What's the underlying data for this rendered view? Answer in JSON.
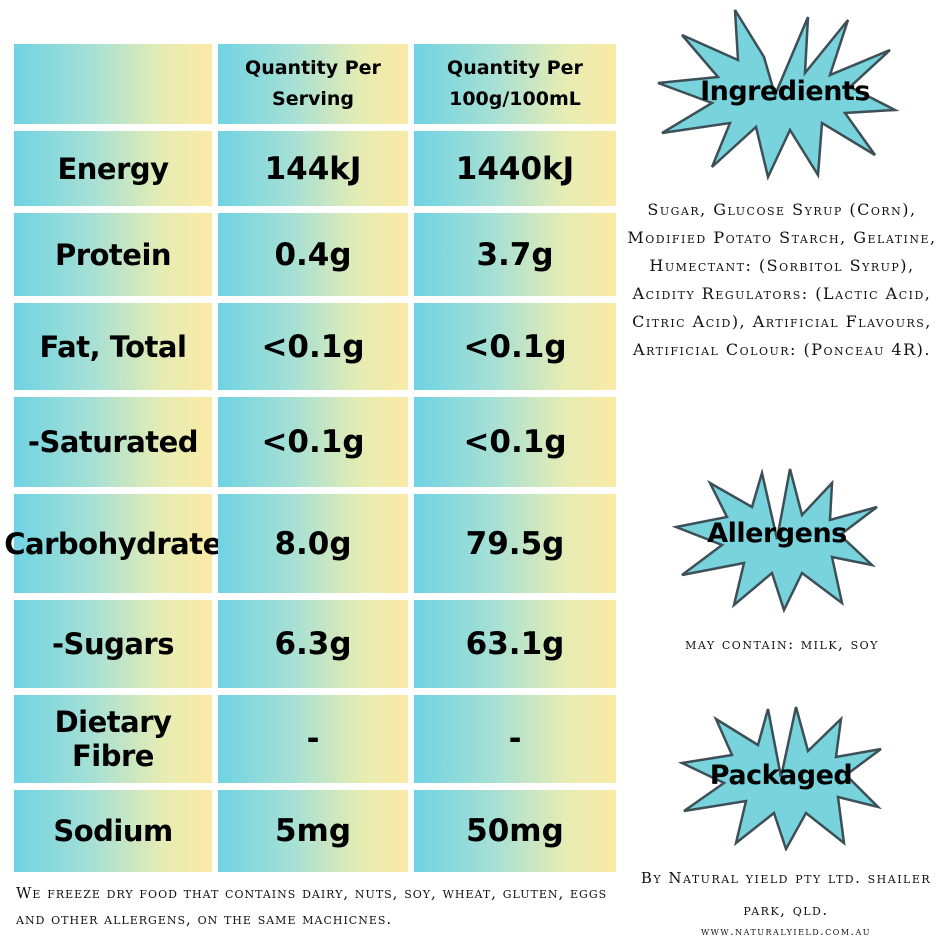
{
  "table": {
    "headers": [
      "",
      "Quantity Per Serving",
      "Quantity Per 100g/100mL"
    ],
    "rows": [
      {
        "label": "Energy",
        "serving": "144kJ",
        "per100": "1440kJ"
      },
      {
        "label": "Protein",
        "serving": "0.4g",
        "per100": "3.7g"
      },
      {
        "label": "Fat, Total",
        "serving": "<0.1g",
        "per100": "<0.1g"
      },
      {
        "label": "-Saturated",
        "serving": "<0.1g",
        "per100": "<0.1g"
      },
      {
        "label": "Carbohydrate",
        "serving": "8.0g",
        "per100": "79.5g"
      },
      {
        "label": "-Sugars",
        "serving": "6.3g",
        "per100": "63.1g"
      },
      {
        "label": "Dietary Fibre",
        "serving": "-",
        "per100": "-"
      },
      {
        "label": "Sodium",
        "serving": "5mg",
        "per100": "50mg"
      }
    ]
  },
  "footer_note": "We freeze dry food that contains dairy, nuts, soy, wheat, gluten, eggs and other allergens, on the same machicnes.",
  "ingredients": {
    "title": "Ingredients",
    "text": "Sugar, Glucose Syrup (Corn), Modified Potato Starch, Gelatine, Humectant: (Sorbitol Syrup), Acidity Regulators: (Lactic Acid, Citric Acid), Artificial Flavours, Artificial Colour: (Ponceau 4R)."
  },
  "allergens": {
    "title": "Allergens",
    "text": "may contain: milk, soy"
  },
  "packaged": {
    "title": "Packaged",
    "text": "By Natural yield pty ltd.  shailer park, qld.",
    "website": "www.naturalyield.com.au"
  },
  "colors": {
    "burst_fill": "#78d3dd",
    "burst_stroke": "#3d4f57",
    "gradient_left": "#6fd3e3",
    "gradient_right": "#fbeaa6"
  },
  "icons": [
    "starburst-badge"
  ]
}
